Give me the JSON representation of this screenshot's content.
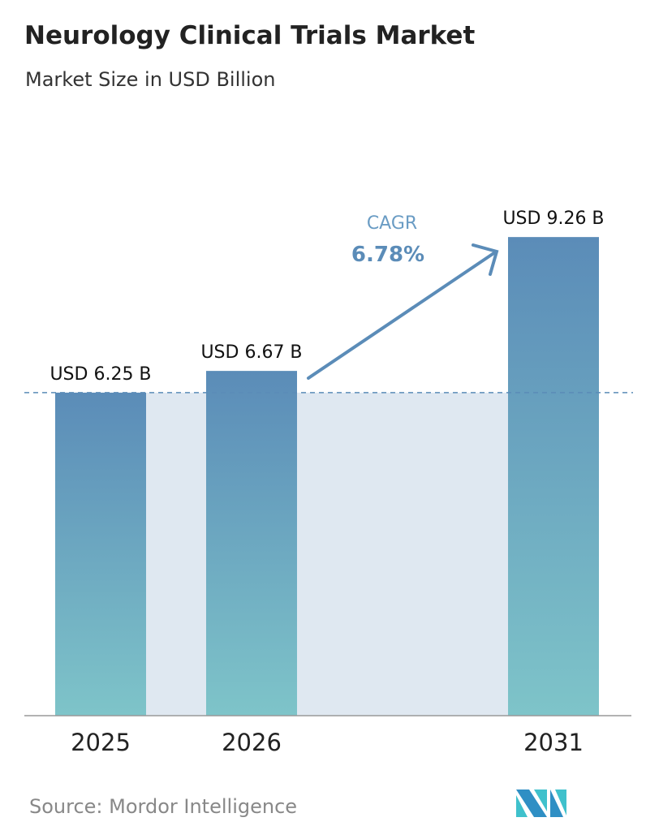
{
  "chart_data": {
    "type": "bar",
    "title": "Neurology Clinical Trials Market",
    "subtitle": "Market Size in USD Billion",
    "categories": [
      "2025",
      "2026",
      "2031"
    ],
    "values": [
      6.25,
      6.67,
      9.26
    ],
    "data_labels": [
      "USD 6.25 B",
      "USD 6.67 B",
      "USD 9.26 B"
    ],
    "ylim": [
      0,
      9.5
    ],
    "grid": false,
    "annotation": {
      "label": "CAGR",
      "value": "6.78%"
    },
    "colors": {
      "bar_top": "#5b8cb8",
      "bar_bottom": "#7ec4c9",
      "shade": "#dfe8f1",
      "arrow": "#5b8cb8"
    }
  },
  "source": "Source:  Mordor Intelligence"
}
